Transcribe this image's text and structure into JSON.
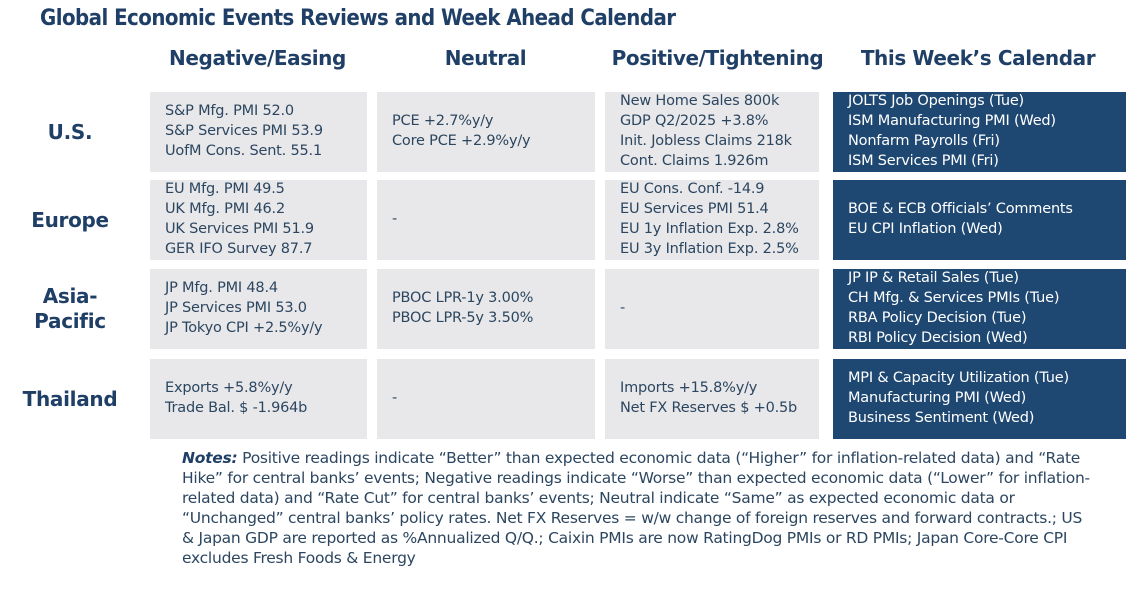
{
  "title": "Global Economic Events Reviews and Week Ahead Calendar",
  "columns": [
    "Negative/Easing",
    "Neutral",
    "Positive/Tightening",
    "This Week’s Calendar"
  ],
  "rows": [
    {
      "region": "U.S.",
      "negative": [
        "S&P Mfg. PMI 52.0",
        "S&P Services PMI 53.9",
        "UofM Cons. Sent. 55.1"
      ],
      "neutral": [
        "PCE +2.7%y/y",
        "Core PCE +2.9%y/y"
      ],
      "positive": [
        "New Home Sales 800k",
        "GDP Q2/2025 +3.8%",
        "Init. Jobless Claims 218k",
        "Cont. Claims 1.926m"
      ],
      "calendar": [
        "JOLTS Job Openings (Tue)",
        "ISM Manufacturing PMI (Wed)",
        "Nonfarm Payrolls (Fri)",
        "ISM Services PMI (Fri)"
      ]
    },
    {
      "region": "Europe",
      "negative": [
        "EU Mfg. PMI 49.5",
        "UK Mfg. PMI 46.2",
        "UK Services PMI 51.9",
        "GER IFO Survey 87.7"
      ],
      "neutral": [
        "-"
      ],
      "positive": [
        "EU Cons. Conf. -14.9",
        "EU Services PMI 51.4",
        "EU 1y Inflation Exp. 2.8%",
        "EU 3y Inflation Exp. 2.5%"
      ],
      "calendar": [
        "BOE & ECB Officials’ Comments",
        "EU CPI Inflation (Wed)"
      ]
    },
    {
      "region_lines": [
        "Asia-",
        "Pacific"
      ],
      "negative": [
        "JP Mfg. PMI 48.4",
        "JP Services PMI 53.0",
        "JP Tokyo CPI +2.5%y/y"
      ],
      "neutral": [
        "PBOC LPR-1y 3.00%",
        "PBOC LPR-5y 3.50%"
      ],
      "positive": [
        "-"
      ],
      "calendar": [
        "JP IP & Retail Sales (Tue)",
        "CH Mfg. & Services PMIs (Tue)",
        "RBA Policy Decision (Tue)",
        "RBI Policy Decision (Wed)"
      ]
    },
    {
      "region": "Thailand",
      "negative": [
        "Exports +5.8%y/y",
        "Trade Bal. $ -1.964b"
      ],
      "neutral": [
        "-"
      ],
      "positive": [
        "Imports +15.8%y/y",
        "Net FX Reserves $ +0.5b"
      ],
      "calendar": [
        "MPI & Capacity Utilization (Tue)",
        "Manufacturing PMI (Wed)",
        "Business Sentiment (Wed)"
      ]
    }
  ],
  "notes": {
    "label": "Notes:",
    "text": " Positive readings indicate “Better” than expected economic data (“Higher” for inflation-related data) and “Rate Hike” for central banks’ events; Negative readings indicate “Worse” than expected economic data (“Lower” for inflation-related data) and “Rate Cut” for central banks’ events; Neutral indicate “Same” as expected economic data or “Unchanged” central banks’ policy rates. Net FX Reserves = w/w change of foreign reserves and forward contracts.; US & Japan GDP are reported as %Annualized Q/Q.; Caixin PMIs are now RatingDog PMIs or RD PMIs; Japan Core-Core CPI excludes Fresh Foods & Energy"
  },
  "colors": {
    "heading": "#1f3f66",
    "cell_bg": "#e8e8ea",
    "calendar_bg": "#1e4872",
    "text": "#2c4660"
  }
}
